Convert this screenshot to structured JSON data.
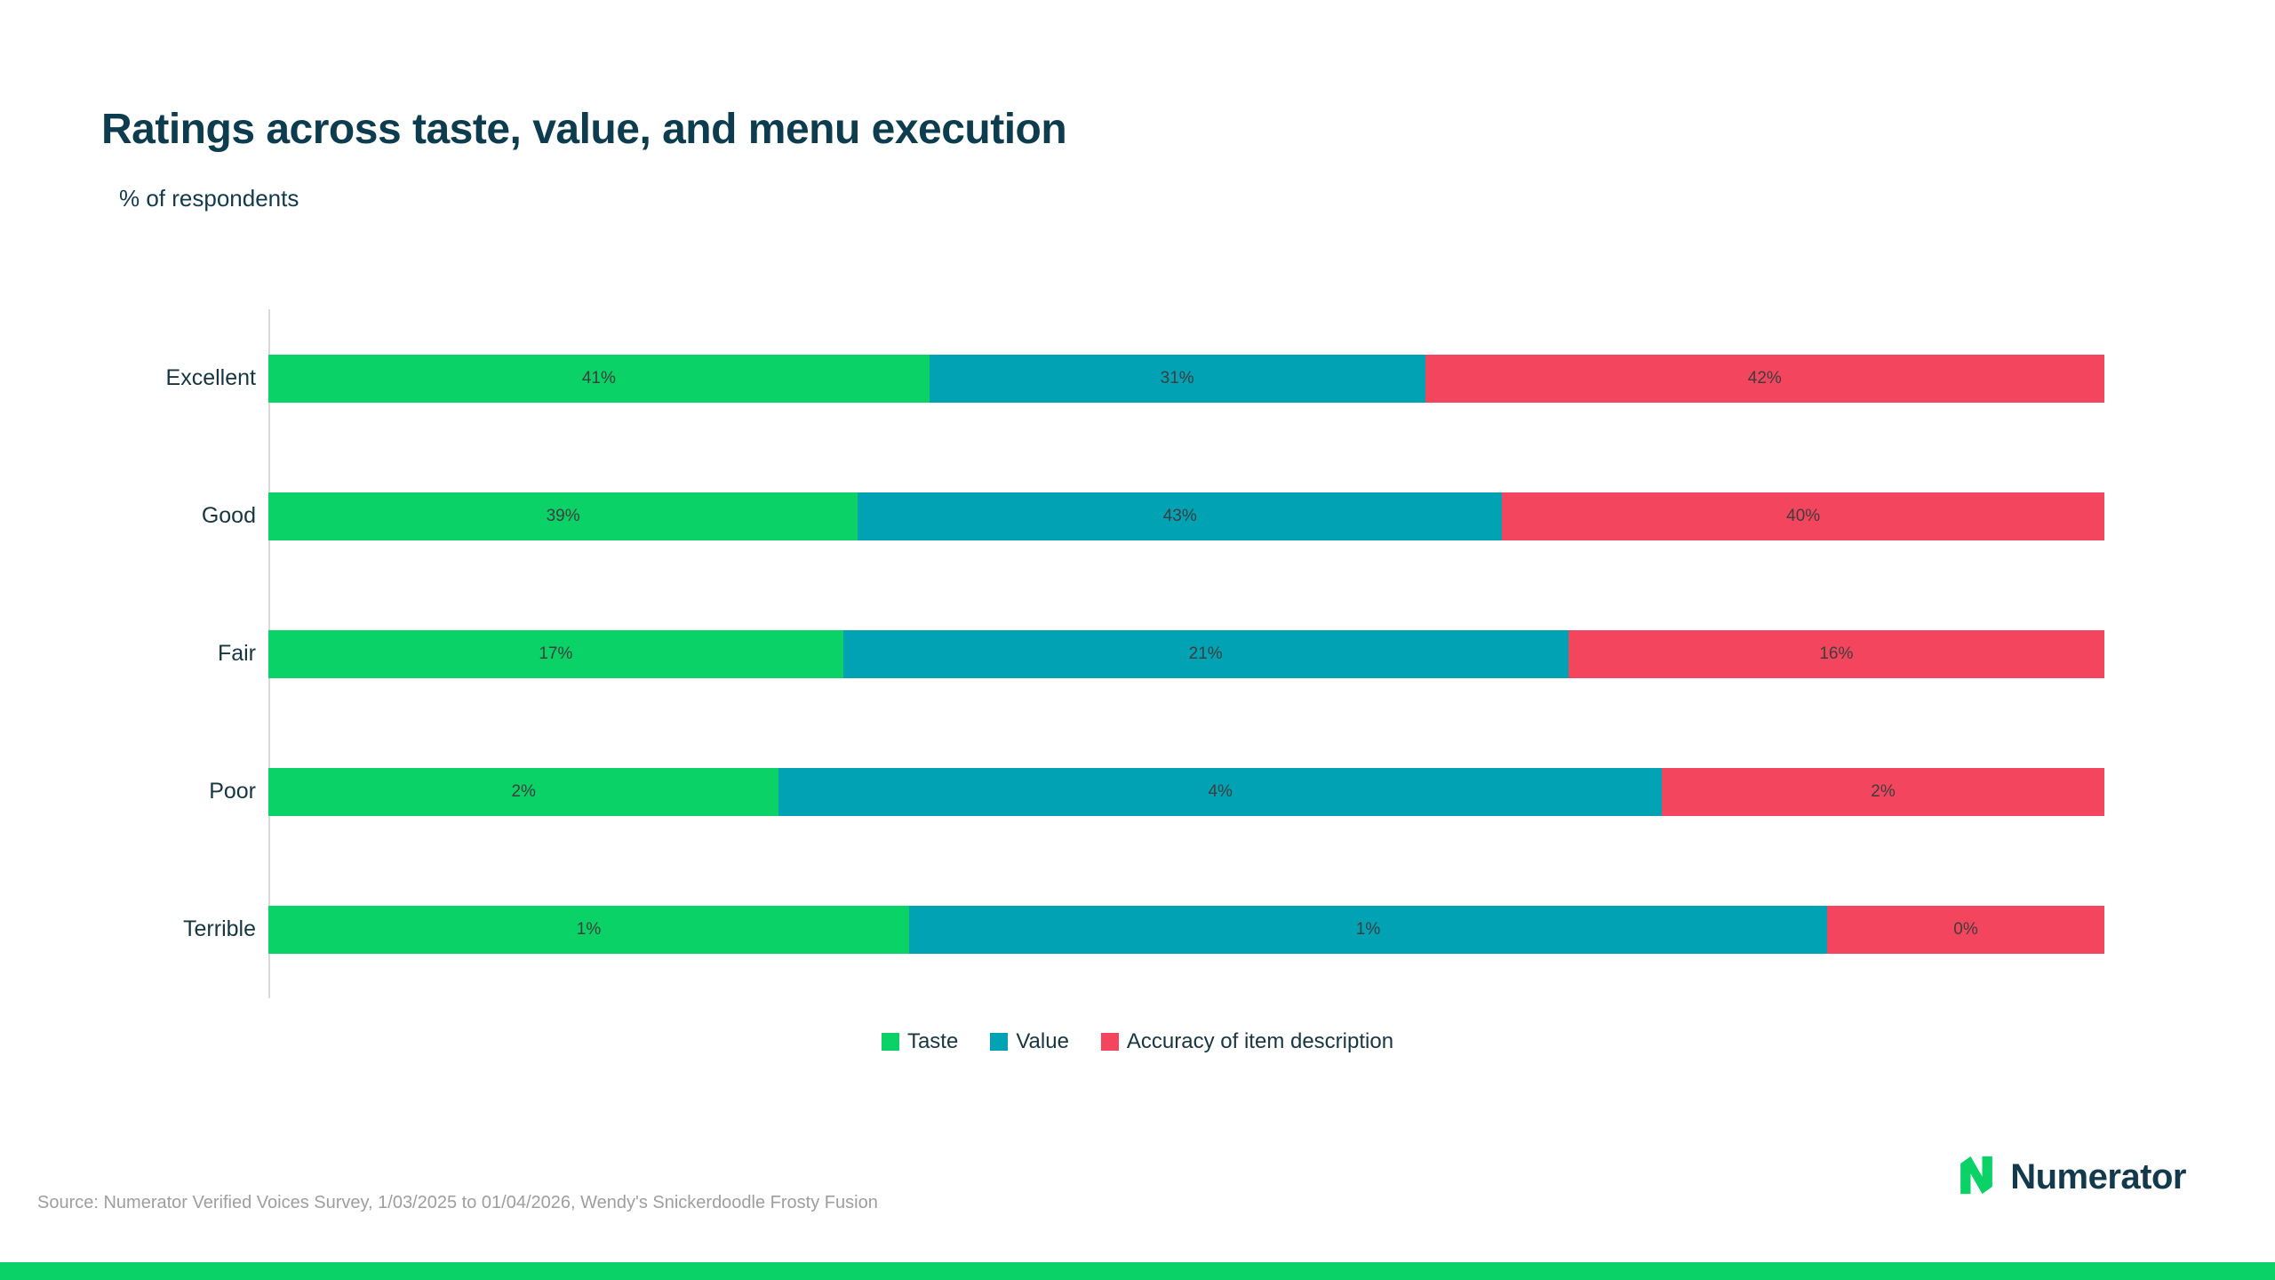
{
  "page": {
    "source": "Source: Numerator Verified Voices Survey, 1/03/2025 to 01/04/2026,  Wendy's Snickerdoodle Frosty Fusion",
    "brand_name": "Numerator"
  },
  "colors": {
    "title_text": "#0d3c4e",
    "taste_green": "#0bd266",
    "value_teal": "#00a2b3",
    "accuracy_red": "#f4455e",
    "bottom_bar": "#0bd266",
    "axis_line": "#d9d9d9",
    "source_text": "#9e9e9e"
  },
  "chart_data": {
    "type": "bar",
    "variant": "horizontal-stacked-100",
    "title": "Ratings across taste, value, and menu execution",
    "subtitle": "% of respondents",
    "xlabel": "",
    "ylabel": "",
    "grid": false,
    "legend_position": "bottom",
    "value_suffix": "%",
    "categories": [
      "Excellent",
      "Good",
      "Fair",
      "Poor",
      "Terrible"
    ],
    "series": [
      {
        "name": "Taste",
        "color": "#0bd266",
        "values": [
          41,
          39,
          17,
          2,
          1
        ]
      },
      {
        "name": "Value",
        "color": "#00a2b3",
        "values": [
          31,
          43,
          21,
          4,
          1
        ]
      },
      {
        "name": "Accuracy of item description",
        "color": "#f4455e",
        "values": [
          42,
          40,
          16,
          2,
          0
        ]
      }
    ],
    "segment_width_pct": [
      [
        36.0,
        27.0,
        37.0
      ],
      [
        32.1,
        35.1,
        32.8
      ],
      [
        31.3,
        39.5,
        29.2
      ],
      [
        27.8,
        48.1,
        24.1
      ],
      [
        34.9,
        50.0,
        15.1
      ]
    ]
  }
}
